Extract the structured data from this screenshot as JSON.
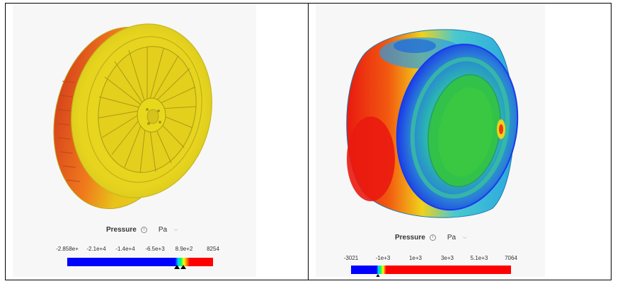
{
  "left_view": {
    "legend": {
      "field": "Pressure",
      "unit": "Pa",
      "ticks": [
        "-2.858e+",
        "-2.1e+4",
        "-1.4e+4",
        "-6.5e+3",
        "8.9e+2",
        "8254"
      ]
    },
    "colors": {
      "low": "#0000ff",
      "mid": "#00ff66",
      "high": "#ff0000"
    }
  },
  "right_view": {
    "legend": {
      "field": "Pressure",
      "unit": "Pa",
      "ticks": [
        "-3021",
        "-1e+3",
        "1e+3",
        "3e+3",
        "5.1e+3",
        "7064"
      ]
    },
    "colors": {
      "low": "#0000ff",
      "mid": "#00ff66",
      "high": "#ff0000"
    }
  },
  "icons": {
    "info": "info-icon",
    "dropdown": "chevron-down-icon"
  }
}
